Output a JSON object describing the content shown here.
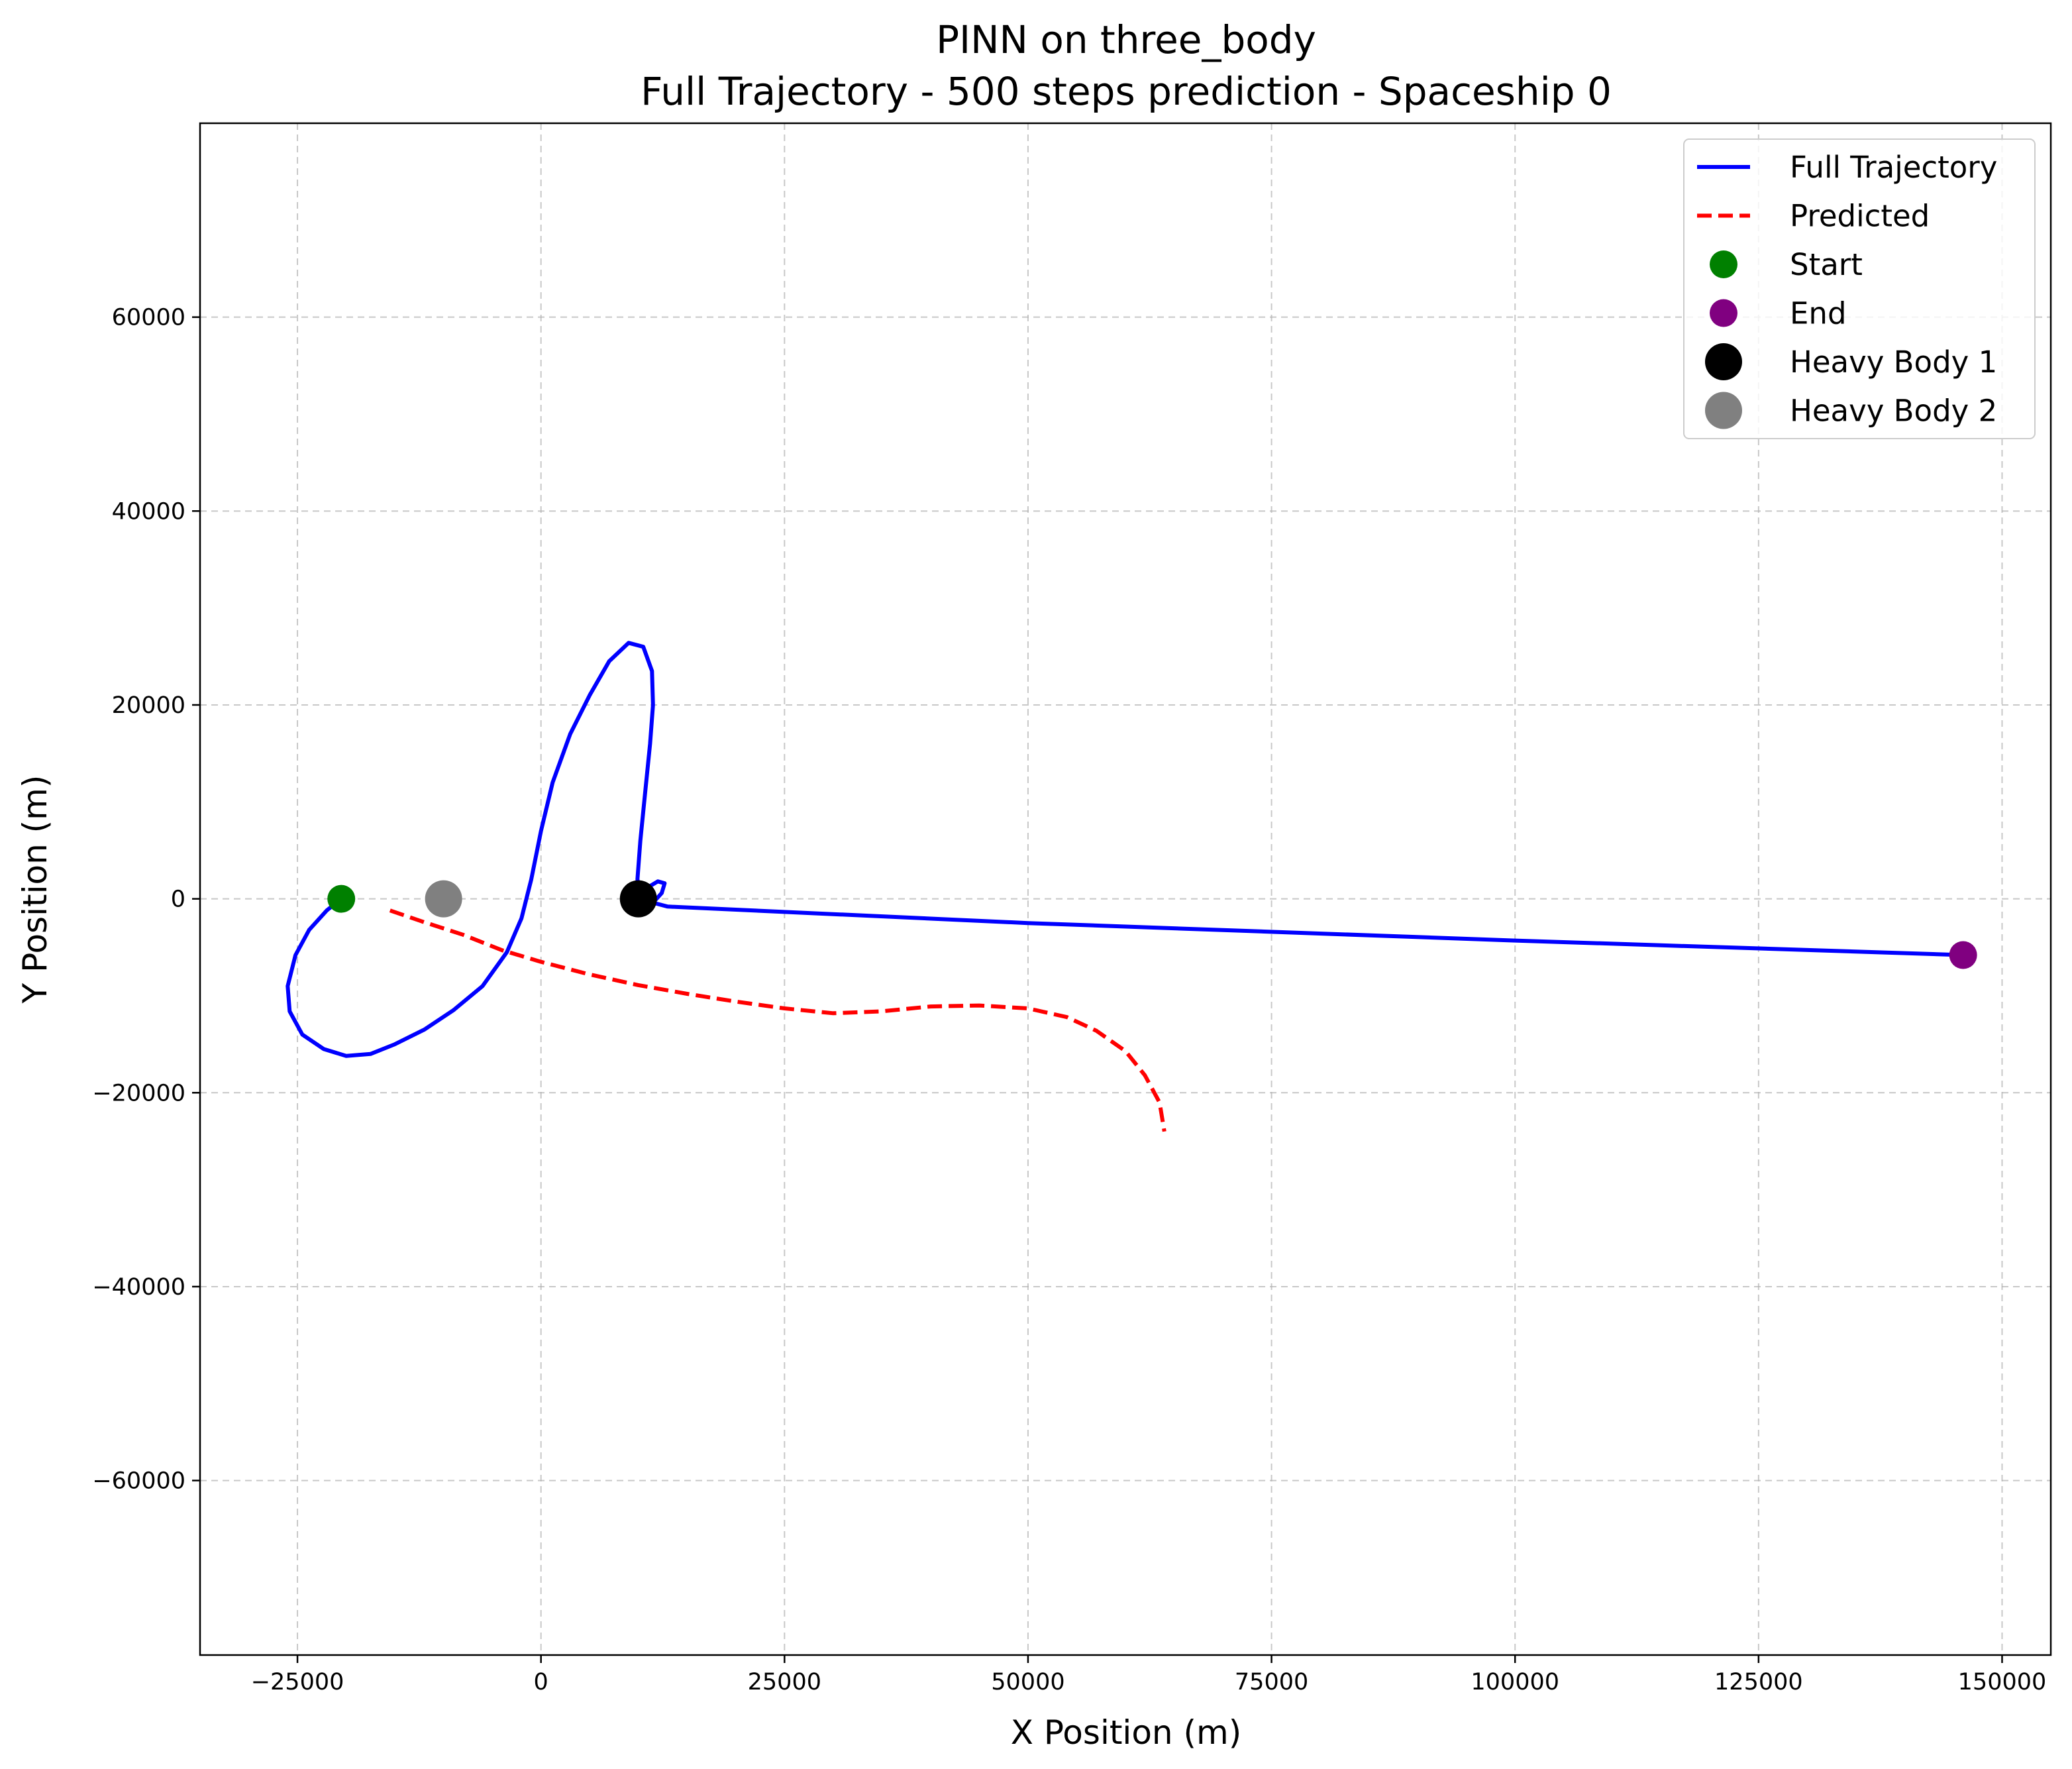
{
  "chart_data": {
    "type": "line",
    "title": "PINN on three_body",
    "subtitle": "Full Trajectory - 500 steps prediction - Spaceship 0",
    "xlabel": "X Position (m)",
    "ylabel": "Y Position (m)",
    "xlim": [
      -35000,
      155000
    ],
    "ylim": [
      -78000,
      80000
    ],
    "xticks": [
      -25000,
      0,
      25000,
      50000,
      75000,
      100000,
      125000,
      150000
    ],
    "xtick_labels": [
      "−25000",
      "0",
      "25000",
      "50000",
      "75000",
      "100000",
      "125000",
      "150000"
    ],
    "yticks": [
      -60000,
      -40000,
      -20000,
      0,
      20000,
      40000,
      60000
    ],
    "ytick_labels": [
      "−60000",
      "−40000",
      "−20000",
      "0",
      "20000",
      "40000",
      "60000"
    ],
    "grid": true,
    "legend_position": "top-right",
    "series": [
      {
        "name": "Full Trajectory",
        "style": "solid",
        "color": "#0000ff",
        "points": [
          [
            -20500,
            0
          ],
          [
            -22000,
            -1200
          ],
          [
            -23800,
            -3200
          ],
          [
            -25200,
            -5800
          ],
          [
            -26000,
            -9000
          ],
          [
            -25800,
            -11600
          ],
          [
            -24500,
            -14000
          ],
          [
            -22300,
            -15500
          ],
          [
            -20000,
            -16200
          ],
          [
            -17500,
            -16000
          ],
          [
            -15000,
            -15000
          ],
          [
            -12000,
            -13500
          ],
          [
            -9000,
            -11500
          ],
          [
            -6000,
            -9000
          ],
          [
            -3500,
            -5500
          ],
          [
            -2000,
            -2000
          ],
          [
            -1000,
            2000
          ],
          [
            0,
            7000
          ],
          [
            1200,
            12000
          ],
          [
            3000,
            17000
          ],
          [
            5000,
            21000
          ],
          [
            7000,
            24500
          ],
          [
            9000,
            26400
          ],
          [
            10500,
            26000
          ],
          [
            11400,
            23500
          ],
          [
            11500,
            20000
          ],
          [
            11200,
            16000
          ],
          [
            10700,
            11000
          ],
          [
            10200,
            6000
          ],
          [
            9900,
            2000
          ],
          [
            10200,
            800
          ],
          [
            11000,
            1200
          ],
          [
            12000,
            1800
          ],
          [
            12700,
            1600
          ],
          [
            12400,
            600
          ],
          [
            11500,
            -400
          ],
          [
            13000,
            -800
          ],
          [
            50000,
            -2500
          ],
          [
            100000,
            -4300
          ],
          [
            146000,
            -5800
          ]
        ]
      },
      {
        "name": "Predicted",
        "style": "dashed",
        "color": "#ff0000",
        "points": [
          [
            -15500,
            -1200
          ],
          [
            -12000,
            -2400
          ],
          [
            -8000,
            -3700
          ],
          [
            -4000,
            -5300
          ],
          [
            0,
            -6500
          ],
          [
            5000,
            -7800
          ],
          [
            10000,
            -8900
          ],
          [
            15000,
            -9800
          ],
          [
            20000,
            -10600
          ],
          [
            25000,
            -11300
          ],
          [
            30000,
            -11800
          ],
          [
            35000,
            -11600
          ],
          [
            40000,
            -11100
          ],
          [
            45000,
            -11000
          ],
          [
            50000,
            -11300
          ],
          [
            54000,
            -12200
          ],
          [
            57000,
            -13600
          ],
          [
            60000,
            -15700
          ],
          [
            62000,
            -18200
          ],
          [
            63500,
            -21000
          ],
          [
            64000,
            -24000
          ]
        ]
      }
    ],
    "markers": [
      {
        "name": "Start",
        "x": -20500,
        "y": 0,
        "color": "#008000",
        "size": "small"
      },
      {
        "name": "End",
        "x": 146000,
        "y": -5800,
        "color": "#800080",
        "size": "small"
      },
      {
        "name": "Heavy Body 1",
        "x": 10000,
        "y": 0,
        "color": "#000000",
        "size": "large"
      },
      {
        "name": "Heavy Body 2",
        "x": -10000,
        "y": 0,
        "color": "#808080",
        "size": "large"
      }
    ],
    "legend": [
      {
        "label": "Full Trajectory",
        "kind": "line",
        "style": "solid",
        "color": "#0000ff"
      },
      {
        "label": "Predicted",
        "kind": "line",
        "style": "dashed",
        "color": "#ff0000"
      },
      {
        "label": "Start",
        "kind": "marker",
        "color": "#008000",
        "size": "small"
      },
      {
        "label": "End",
        "kind": "marker",
        "color": "#800080",
        "size": "small"
      },
      {
        "label": "Heavy Body 1",
        "kind": "marker",
        "color": "#000000",
        "size": "large"
      },
      {
        "label": "Heavy Body 2",
        "kind": "marker",
        "color": "#808080",
        "size": "large"
      }
    ]
  }
}
